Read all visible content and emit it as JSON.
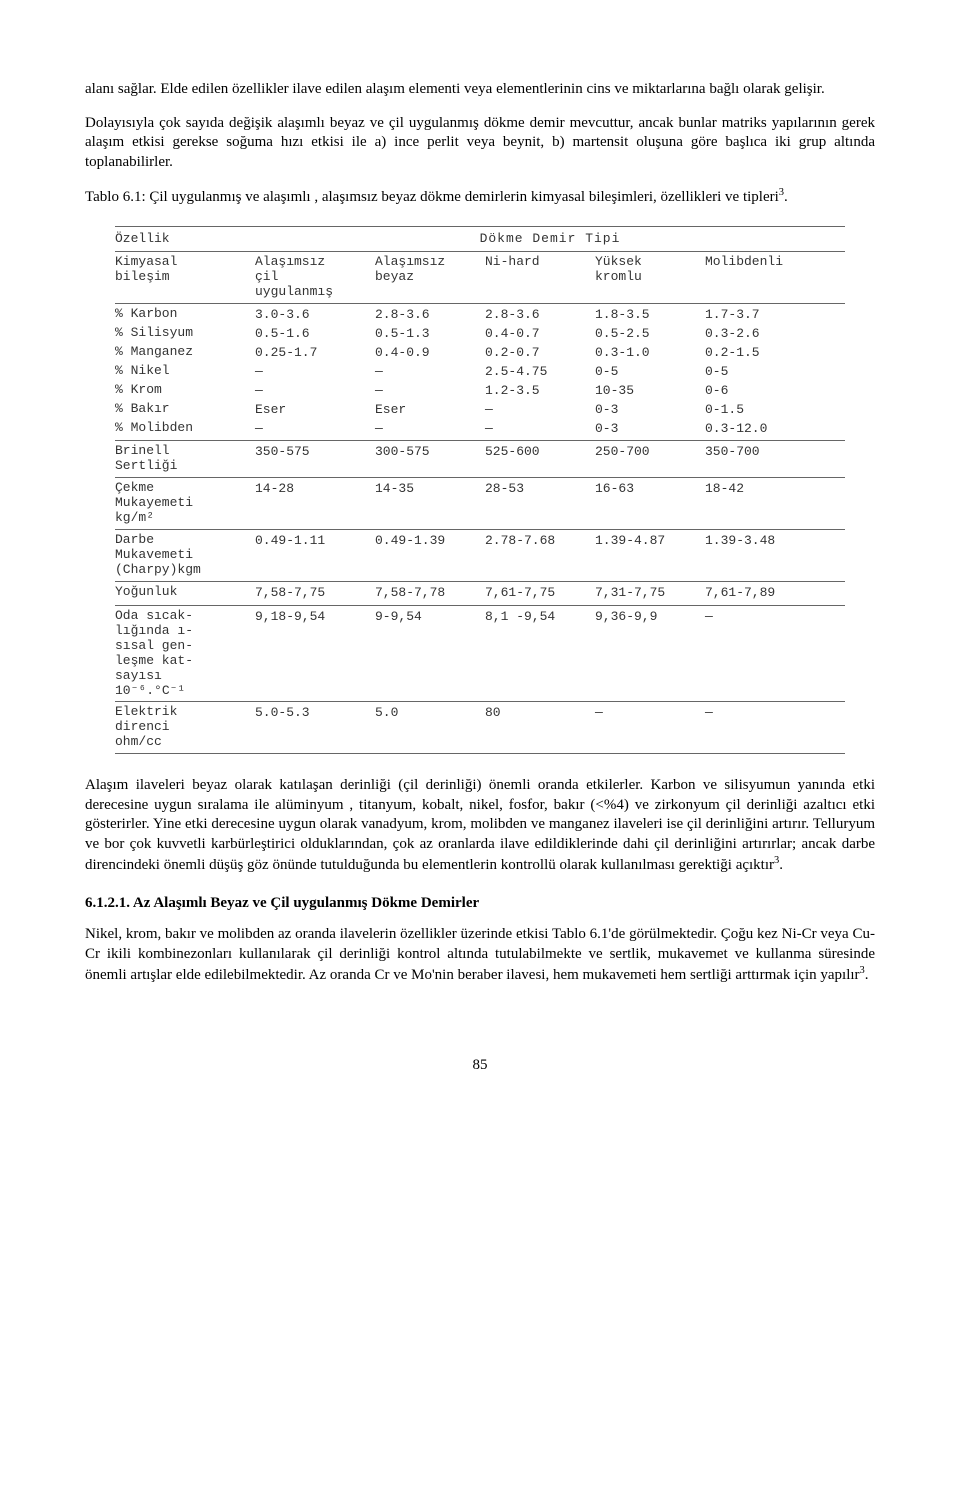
{
  "para1": "alanı sağlar. Elde edilen özellikler ilave edilen alaşım elementi veya elementlerinin cins ve miktarlarına bağlı olarak gelişir.",
  "para2": "Dolayısıyla çok sayıda değişik alaşımlı beyaz ve çil uygulanmış dökme demir mevcuttur, ancak bunlar matriks yapılarının gerek alaşım etkisi gerekse soğuma hızı etkisi ile a) ince perlit veya beynit, b) martensit oluşuna göre başlıca iki grup altında toplanabilirler.",
  "caption_a": "Tablo 6.1: Çil uygulanmış ve alaşımlı , alaşımsız beyaz dökme demirlerin kimyasal bileşimleri, özellikleri ve tipleri",
  "caption_sup": "3",
  "caption_b": ".",
  "table": {
    "super_left": "Özellik",
    "super_right": "Dökme Demir Tipi",
    "cols": [
      "Kimyasal\nbileşim",
      "Alaşımsız\nçil\nuygulanmış",
      "Alaşımsız\nbeyaz",
      "Ni-hard",
      "Yüksek\nkromlu",
      "Molibdenli"
    ],
    "comp_rows": [
      [
        "% Karbon",
        "3.0-3.6",
        "2.8-3.6",
        "2.8-3.6",
        "1.8-3.5",
        "1.7-3.7"
      ],
      [
        "% Silisyum",
        "0.5-1.6",
        "0.5-1.3",
        "0.4-0.7",
        "0.5-2.5",
        "0.3-2.6"
      ],
      [
        "% Manganez",
        "0.25-1.7",
        "0.4-0.9",
        "0.2-0.7",
        "0.3-1.0",
        "0.2-1.5"
      ],
      [
        "% Nikel",
        "—",
        "—",
        "2.5-4.75",
        "0-5",
        "0-5"
      ],
      [
        "% Krom",
        "—",
        "—",
        "1.2-3.5",
        "10-35",
        "0-6"
      ],
      [
        "% Bakır",
        "Eser",
        "Eser",
        "—",
        "0-3",
        "0-1.5"
      ],
      [
        "% Molibden",
        "—",
        "—",
        "—",
        "0-3",
        "0.3-12.0"
      ]
    ],
    "prop_rows": [
      [
        "Brinell\nSertliği",
        "350-575",
        "300-575",
        "525-600",
        "250-700",
        "350-700"
      ],
      [
        "Çekme\nMukayemeti\nkg/m²",
        "14-28",
        "14-35",
        "28-53",
        "16-63",
        "18-42"
      ],
      [
        "Darbe\nMukavemeti\n(Charpy)kgm",
        "0.49-1.11",
        "0.49-1.39",
        "2.78-7.68",
        "1.39-4.87",
        "1.39-3.48"
      ],
      [
        "Yoğunluk",
        "7,58-7,75",
        "7,58-7,78",
        "7,61-7,75",
        "7,31-7,75",
        "7,61-7,89"
      ],
      [
        "Oda sıcak-\nlığında ı-\nsısal gen-\nleşme kat-\nsayısı\n 10⁻⁶.°C⁻¹",
        "9,18-9,54",
        "9-9,54",
        "8,1 -9,54",
        "9,36-9,9",
        "—"
      ],
      [
        "Elektrik\ndirenci\n ohm/cc",
        "5.0-5.3",
        "5.0",
        "80",
        "—",
        "—"
      ]
    ]
  },
  "para3_a": "Alaşım ilaveleri beyaz olarak katılaşan derinliği (çil derinliği) önemli oranda etkilerler. Karbon ve silisyumun yanında etki derecesine uygun sıralama ile alüminyum , titanyum, kobalt, nikel, fosfor, bakır (<%4) ve zirkonyum çil derinliği azaltıcı etki gösterirler. Yine etki derecesine uygun olarak vanadyum, krom, molibden ve manganez ilaveleri ise çil derinliğini artırır. Telluryum ve bor çok kuvvetli karbürleştirici olduklarından, çok az oranlarda ilave edildiklerinde dahi çil derinliğini artırırlar; ancak darbe direncindeki önemli düşüş göz önünde tutulduğunda bu elementlerin kontrollü olarak kullanılması gerektiği açıktır",
  "para3_sup": "3",
  "para3_b": ".",
  "section": "6.1.2.1. Az Alaşımlı Beyaz ve Çil uygulanmış Dökme Demirler",
  "para4_a": "Nikel, krom, bakır ve molibden az oranda ilavelerin özellikler üzerinde etkisi Tablo 6.1'de görülmektedir. Çoğu kez Ni-Cr veya Cu-Cr ikili kombinezonları kullanılarak çil derinliği kontrol altında tutulabilmekte ve sertlik, mukavemet ve kullanma süresinde önemli artışlar elde edilebilmektedir. Az oranda Cr ve Mo'nin beraber ilavesi, hem mukavemeti hem sertliği arttırmak için yapılır",
  "para4_sup": "3",
  "para4_b": ".",
  "page": "85"
}
